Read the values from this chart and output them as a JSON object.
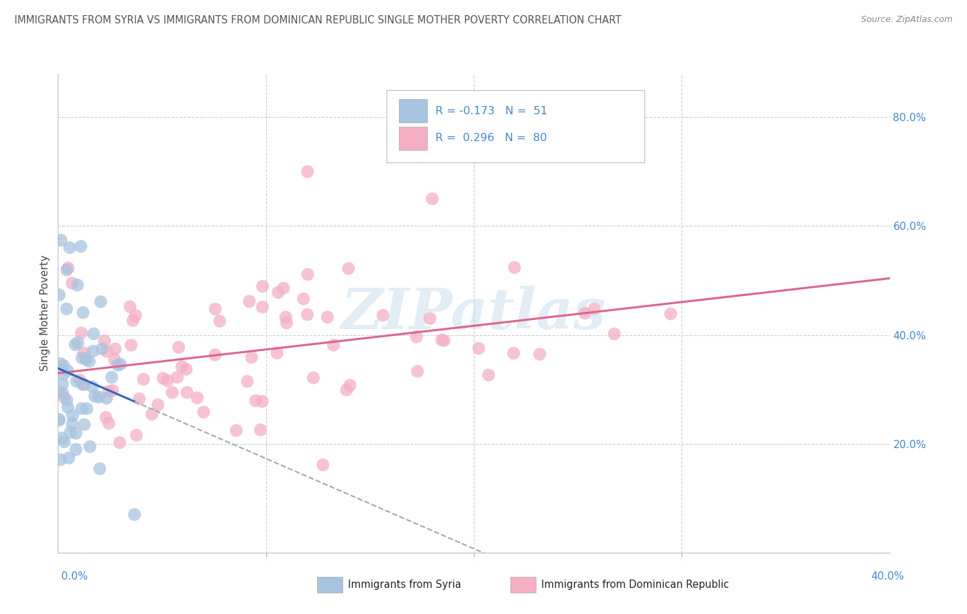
{
  "title": "IMMIGRANTS FROM SYRIA VS IMMIGRANTS FROM DOMINICAN REPUBLIC SINGLE MOTHER POVERTY CORRELATION CHART",
  "source": "Source: ZipAtlas.com",
  "ylabel": "Single Mother Poverty",
  "ytick_labels": [
    "20.0%",
    "40.0%",
    "60.0%",
    "80.0%"
  ],
  "ytick_values": [
    0.2,
    0.4,
    0.6,
    0.8
  ],
  "legend_line1": "R = -0.173   N =  51",
  "legend_line2": "R =  0.296   N =  80",
  "legend_bottom_1": "Immigrants from Syria",
  "legend_bottom_2": "Immigrants from Dominican Republic",
  "syria_color": "#a8c4e0",
  "dr_color": "#f4afc4",
  "syria_line_color": "#3366bb",
  "dr_line_color": "#dd6688",
  "dashed_color": "#99aabb",
  "watermark": "ZIPatlas",
  "background_color": "#ffffff",
  "grid_color": "#cccccc",
  "title_color": "#555555",
  "axis_label_color": "#4488cc",
  "xlim": [
    0.0,
    0.4
  ],
  "ylim": [
    0.0,
    0.88
  ],
  "figsize": [
    14.06,
    8.92
  ],
  "dpi": 100
}
